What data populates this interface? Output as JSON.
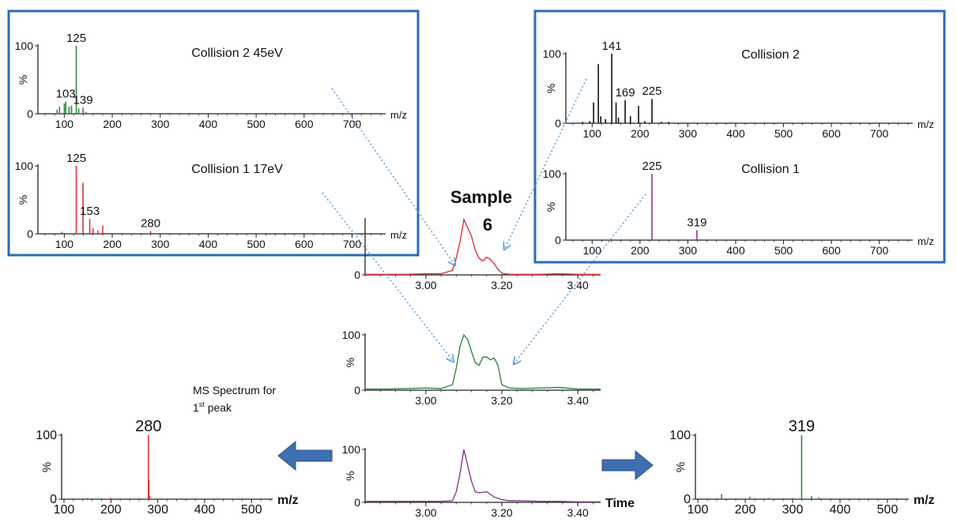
{
  "colors": {
    "red": "#d9343a",
    "green": "#2e8b44",
    "purple": "#8b3a8f",
    "black": "#111111",
    "box": "#2a6bb3",
    "arrow": "#5b9bd5",
    "big_arrow": "#3f6fb0",
    "axis": "#222222"
  },
  "labels": {
    "sample_title": "Sample",
    "sample_number": "6",
    "ms_spectrum_line1": "MS Spectrum for",
    "ms_spectrum_line2_num": "1",
    "ms_spectrum_line2_sup": "st",
    "ms_spectrum_line2_rest": " peak",
    "time_label": "Time"
  },
  "chart_data": [
    {
      "id": "collision2_45ev",
      "type": "bar",
      "color_key": "green",
      "title": "Collision 2 45eV",
      "xlabel": "m/z",
      "ylabel": "%",
      "xlim": [
        45,
        770
      ],
      "ylim": [
        0,
        100
      ],
      "xticks": [
        100,
        200,
        300,
        400,
        500,
        600,
        700
      ],
      "yticks": [
        0,
        100
      ],
      "peaks": [
        [
          85,
          6
        ],
        [
          90,
          10
        ],
        [
          100,
          15
        ],
        [
          103,
          18
        ],
        [
          110,
          10
        ],
        [
          115,
          12
        ],
        [
          125,
          100
        ],
        [
          130,
          8
        ],
        [
          139,
          9
        ],
        [
          145,
          3
        ]
      ],
      "annotations": [
        {
          "x": 125,
          "y": 100,
          "text": "125"
        },
        {
          "x": 103,
          "y": 18,
          "text": "103"
        },
        {
          "x": 139,
          "y": 9,
          "text": "139"
        }
      ]
    },
    {
      "id": "collision1_17ev",
      "type": "bar",
      "color_key": "red",
      "title": "Collision 1 17eV",
      "xlabel": "m/z",
      "ylabel": "%",
      "xlim": [
        45,
        770
      ],
      "ylim": [
        0,
        100
      ],
      "xticks": [
        100,
        200,
        300,
        400,
        500,
        600,
        700
      ],
      "yticks": [
        0,
        100
      ],
      "peaks": [
        [
          95,
          3
        ],
        [
          125,
          100
        ],
        [
          139,
          75
        ],
        [
          153,
          22
        ],
        [
          160,
          8
        ],
        [
          170,
          5
        ],
        [
          180,
          12
        ],
        [
          280,
          4
        ]
      ],
      "annotations": [
        {
          "x": 125,
          "y": 100,
          "text": "125"
        },
        {
          "x": 153,
          "y": 22,
          "text": "153"
        },
        {
          "x": 280,
          "y": 4,
          "text": "280"
        }
      ]
    },
    {
      "id": "collision2_right",
      "type": "bar",
      "color_key": "black",
      "title": "Collision 2",
      "xlabel": "m/z",
      "ylabel": "%",
      "xlim": [
        45,
        770
      ],
      "ylim": [
        0,
        100
      ],
      "xticks": [
        100,
        200,
        300,
        400,
        500,
        600,
        700
      ],
      "yticks": [
        0,
        100
      ],
      "peaks": [
        [
          80,
          2
        ],
        [
          95,
          3
        ],
        [
          103,
          30
        ],
        [
          113,
          85
        ],
        [
          118,
          10
        ],
        [
          128,
          6
        ],
        [
          141,
          100
        ],
        [
          150,
          30
        ],
        [
          155,
          8
        ],
        [
          169,
          33
        ],
        [
          180,
          10
        ],
        [
          197,
          25
        ],
        [
          210,
          3
        ],
        [
          225,
          35
        ],
        [
          245,
          2
        ],
        [
          260,
          2
        ]
      ],
      "annotations": [
        {
          "x": 141,
          "y": 100,
          "text": "141"
        },
        {
          "x": 169,
          "y": 33,
          "text": "169"
        },
        {
          "x": 225,
          "y": 35,
          "text": "225"
        }
      ]
    },
    {
      "id": "collision1_right",
      "type": "bar",
      "color_key": "purple",
      "title": "Collision 1",
      "xlabel": "m/z",
      "ylabel": "%",
      "xlim": [
        45,
        770
      ],
      "ylim": [
        0,
        100
      ],
      "xticks": [
        100,
        200,
        300,
        400,
        500,
        600,
        700
      ],
      "yticks": [
        0,
        100
      ],
      "peaks": [
        [
          225,
          100
        ],
        [
          319,
          15
        ]
      ],
      "annotations": [
        {
          "x": 225,
          "y": 100,
          "text": "225"
        },
        {
          "x": 319,
          "y": 15,
          "text": "319"
        }
      ]
    },
    {
      "id": "chrom_red",
      "type": "line",
      "color_key": "red",
      "xlabel": "",
      "ylabel": "",
      "xlim": [
        2.84,
        3.46
      ],
      "ylim": [
        0,
        100
      ],
      "xticks": [
        3.0,
        3.2,
        3.4
      ],
      "xtick_labels": [
        "3.00",
        "3.20",
        "3.40"
      ],
      "yticks": [
        0
      ],
      "show_y_top": false,
      "x": [
        2.84,
        2.9,
        2.95,
        3.0,
        3.04,
        3.07,
        3.08,
        3.09,
        3.1,
        3.11,
        3.12,
        3.13,
        3.14,
        3.15,
        3.16,
        3.17,
        3.18,
        3.19,
        3.2,
        3.22,
        3.25,
        3.3,
        3.35,
        3.4,
        3.46
      ],
      "y": [
        1,
        1,
        1,
        2,
        2,
        8,
        30,
        60,
        100,
        85,
        70,
        45,
        30,
        25,
        32,
        28,
        20,
        10,
        3,
        1,
        1,
        1,
        2,
        1,
        1
      ]
    },
    {
      "id": "chrom_green",
      "type": "line",
      "color_key": "green",
      "xlabel": "",
      "ylabel": "%",
      "xlim": [
        2.84,
        3.46
      ],
      "ylim": [
        0,
        100
      ],
      "xticks": [
        3.0,
        3.2,
        3.4
      ],
      "xtick_labels": [
        "3.00",
        "3.20",
        "3.40"
      ],
      "yticks": [
        0,
        100
      ],
      "show_y_top": true,
      "x": [
        2.84,
        2.9,
        2.95,
        3.0,
        3.04,
        3.07,
        3.08,
        3.09,
        3.1,
        3.11,
        3.12,
        3.13,
        3.14,
        3.15,
        3.16,
        3.17,
        3.18,
        3.19,
        3.2,
        3.22,
        3.25,
        3.3,
        3.35,
        3.4,
        3.46
      ],
      "y": [
        2,
        2,
        3,
        4,
        3,
        10,
        40,
        80,
        100,
        92,
        70,
        50,
        45,
        60,
        60,
        55,
        58,
        45,
        10,
        4,
        3,
        4,
        5,
        2,
        2
      ]
    },
    {
      "id": "chrom_purple",
      "type": "line",
      "color_key": "purple",
      "xlabel": "Time",
      "ylabel": "%",
      "xlim": [
        2.84,
        3.46
      ],
      "ylim": [
        0,
        100
      ],
      "xticks": [
        3.0,
        3.2,
        3.4
      ],
      "xtick_labels": [
        "3.00",
        "3.20",
        "3.40"
      ],
      "yticks": [
        0,
        100
      ],
      "show_y_top": true,
      "x": [
        2.84,
        2.9,
        2.95,
        3.0,
        3.04,
        3.07,
        3.08,
        3.09,
        3.1,
        3.11,
        3.12,
        3.13,
        3.14,
        3.16,
        3.18,
        3.2,
        3.22,
        3.25,
        3.3,
        3.35,
        3.4,
        3.46
      ],
      "y": [
        2,
        2,
        2,
        2,
        2,
        3,
        20,
        55,
        100,
        70,
        40,
        20,
        18,
        20,
        10,
        5,
        3,
        3,
        2,
        2,
        1,
        1
      ]
    },
    {
      "id": "ms_first_peak",
      "type": "bar",
      "color_key": "red",
      "xlabel": "m/z",
      "ylabel": "%",
      "xlim": [
        95,
        545
      ],
      "ylim": [
        0,
        100
      ],
      "xticks": [
        100,
        200,
        300,
        400,
        500
      ],
      "yticks": [
        0,
        100
      ],
      "peaks": [
        [
          280,
          100
        ],
        [
          281,
          30
        ],
        [
          283,
          5
        ],
        [
          150,
          2
        ],
        [
          200,
          2
        ],
        [
          320,
          1
        ]
      ],
      "annotations": [
        {
          "x": 280,
          "y": 100,
          "text": "280"
        }
      ]
    },
    {
      "id": "ms_319",
      "type": "bar",
      "color_key": "green",
      "xlabel": "m/z",
      "ylabel": "%",
      "xlim": [
        95,
        545
      ],
      "ylim": [
        0,
        100
      ],
      "xticks": [
        100,
        200,
        300,
        400,
        500
      ],
      "yticks": [
        0,
        100
      ],
      "peaks": [
        [
          319,
          100
        ],
        [
          150,
          8
        ],
        [
          210,
          4
        ],
        [
          340,
          5
        ],
        [
          355,
          3
        ],
        [
          300,
          2
        ],
        [
          250,
          2
        ]
      ],
      "annotations": [
        {
          "x": 319,
          "y": 100,
          "text": "319"
        }
      ]
    }
  ]
}
